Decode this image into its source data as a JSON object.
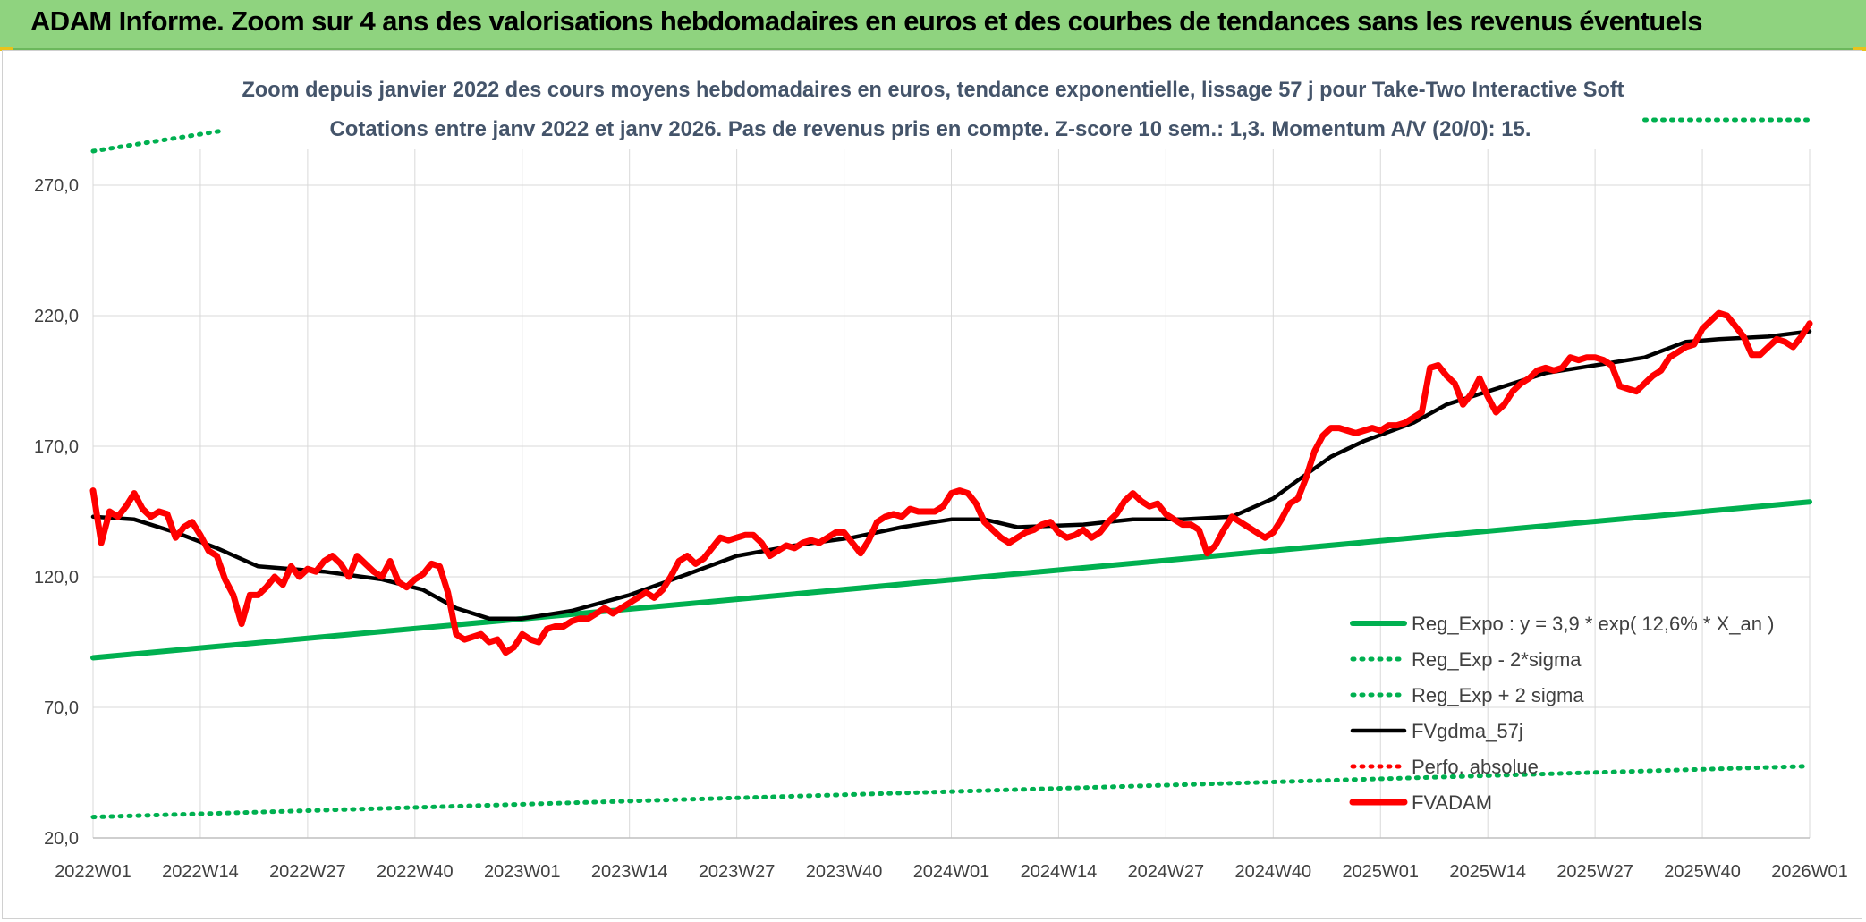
{
  "banner": {
    "title": "ADAM Informe. Zoom sur 4 ans des valorisations hebdomadaires en euros et des courbes de tendances sans les revenus éventuels"
  },
  "chart_data": {
    "type": "line",
    "title": "Zoom depuis janvier 2022 des cours moyens hebdomadaires en euros, tendance exponentielle, lissage 57 j pour Take-Two Interactive Soft",
    "subtitle": "Cotations entre janv 2022 et janv 2026. Pas de revenus pris en compte. Z-score 10 sem.: 1,3. Momentum A/V (20/0): 15.",
    "ylim": [
      20,
      290
    ],
    "y_ticks": [
      "20,0",
      "70,0",
      "120,0",
      "170,0",
      "220,0",
      "270,0"
    ],
    "y_tick_values": [
      20,
      70,
      120,
      170,
      220,
      270
    ],
    "x_ticks": [
      "2022W01",
      "2022W14",
      "2022W27",
      "2022W40",
      "2023W01",
      "2023W14",
      "2023W27",
      "2023W40",
      "2024W01",
      "2024W14",
      "2024W27",
      "2024W40",
      "2025W01",
      "2025W14",
      "2025W27",
      "2025W40",
      "2026W01"
    ],
    "x_tick_weeks": [
      0,
      13,
      26,
      39,
      52,
      65,
      78,
      91,
      104,
      117,
      130,
      143,
      156,
      169,
      182,
      195,
      208
    ],
    "x_range_weeks": [
      0,
      208
    ],
    "series": [
      {
        "name": "Reg_Expo : y = 3,9 * exp( 12,6% *  X_an )",
        "color": "#00b050",
        "style": "solid",
        "points": [
          [
            0,
            89
          ],
          [
            208,
            148.7
          ]
        ]
      },
      {
        "name": "Reg_Exp - 2*sigma",
        "color": "#00b050",
        "style": "dotted",
        "points": [
          [
            0,
            28
          ],
          [
            208,
            47.5
          ]
        ]
      },
      {
        "name": "Reg_Exp + 2 sigma",
        "color": "#00b050",
        "style": "dotted",
        "points": [
          [
            0,
            283
          ],
          [
            16,
            291
          ],
          [
            188,
            295
          ],
          [
            208,
            295
          ]
        ]
      },
      {
        "name": "FVgdma_57j",
        "color": "#000000",
        "style": "solid",
        "points": [
          [
            0,
            143
          ],
          [
            5,
            142
          ],
          [
            10,
            137
          ],
          [
            15,
            131
          ],
          [
            20,
            124
          ],
          [
            28,
            122
          ],
          [
            35,
            119
          ],
          [
            40,
            115
          ],
          [
            44,
            108
          ],
          [
            48,
            104
          ],
          [
            52,
            104
          ],
          [
            58,
            107
          ],
          [
            65,
            113
          ],
          [
            72,
            121
          ],
          [
            78,
            128
          ],
          [
            85,
            132
          ],
          [
            92,
            135
          ],
          [
            98,
            139
          ],
          [
            104,
            142
          ],
          [
            108,
            142
          ],
          [
            112,
            139
          ],
          [
            120,
            140
          ],
          [
            126,
            142
          ],
          [
            132,
            142
          ],
          [
            138,
            143
          ],
          [
            143,
            150
          ],
          [
            146,
            157
          ],
          [
            150,
            166
          ],
          [
            154,
            172
          ],
          [
            160,
            179
          ],
          [
            164,
            186
          ],
          [
            170,
            192
          ],
          [
            176,
            198
          ],
          [
            182,
            201
          ],
          [
            188,
            204
          ],
          [
            193,
            210
          ],
          [
            197,
            211
          ],
          [
            203,
            212
          ],
          [
            208,
            214
          ]
        ]
      },
      {
        "name": "Perfo. absolue",
        "color": "#ff0000",
        "style": "dotted",
        "points": []
      },
      {
        "name": "FVADAM",
        "color": "#ff0000",
        "style": "solid",
        "points": [
          [
            0,
            153
          ],
          [
            1,
            133
          ],
          [
            2,
            145
          ],
          [
            3,
            143
          ],
          [
            4,
            147
          ],
          [
            5,
            152
          ],
          [
            6,
            146
          ],
          [
            7,
            143
          ],
          [
            8,
            145
          ],
          [
            9,
            144
          ],
          [
            10,
            135
          ],
          [
            11,
            139
          ],
          [
            12,
            141
          ],
          [
            13,
            136
          ],
          [
            14,
            130
          ],
          [
            15,
            128
          ],
          [
            16,
            119
          ],
          [
            17,
            113
          ],
          [
            18,
            102
          ],
          [
            19,
            113
          ],
          [
            20,
            113
          ],
          [
            21,
            116
          ],
          [
            22,
            120
          ],
          [
            23,
            117
          ],
          [
            24,
            124
          ],
          [
            25,
            120
          ],
          [
            26,
            123
          ],
          [
            27,
            122
          ],
          [
            28,
            126
          ],
          [
            29,
            128
          ],
          [
            30,
            125
          ],
          [
            31,
            120
          ],
          [
            32,
            128
          ],
          [
            33,
            125
          ],
          [
            34,
            122
          ],
          [
            35,
            120
          ],
          [
            36,
            126
          ],
          [
            37,
            118
          ],
          [
            38,
            116
          ],
          [
            39,
            119
          ],
          [
            40,
            121
          ],
          [
            41,
            125
          ],
          [
            42,
            124
          ],
          [
            43,
            114
          ],
          [
            44,
            98
          ],
          [
            45,
            96
          ],
          [
            46,
            97
          ],
          [
            47,
            98
          ],
          [
            48,
            95
          ],
          [
            49,
            96
          ],
          [
            50,
            91
          ],
          [
            51,
            93
          ],
          [
            52,
            98
          ],
          [
            53,
            96
          ],
          [
            54,
            95
          ],
          [
            55,
            100
          ],
          [
            56,
            101
          ],
          [
            57,
            101
          ],
          [
            58,
            103
          ],
          [
            59,
            104
          ],
          [
            60,
            104
          ],
          [
            61,
            106
          ],
          [
            62,
            108
          ],
          [
            63,
            106
          ],
          [
            64,
            108
          ],
          [
            65,
            110
          ],
          [
            66,
            112
          ],
          [
            67,
            114
          ],
          [
            68,
            112
          ],
          [
            69,
            115
          ],
          [
            70,
            120
          ],
          [
            71,
            126
          ],
          [
            72,
            128
          ],
          [
            73,
            125
          ],
          [
            74,
            127
          ],
          [
            75,
            131
          ],
          [
            76,
            135
          ],
          [
            77,
            134
          ],
          [
            78,
            135
          ],
          [
            79,
            136
          ],
          [
            80,
            136
          ],
          [
            81,
            133
          ],
          [
            82,
            128
          ],
          [
            83,
            130
          ],
          [
            84,
            132
          ],
          [
            85,
            131
          ],
          [
            86,
            133
          ],
          [
            87,
            134
          ],
          [
            88,
            133
          ],
          [
            89,
            135
          ],
          [
            90,
            137
          ],
          [
            91,
            137
          ],
          [
            92,
            133
          ],
          [
            93,
            129
          ],
          [
            94,
            134
          ],
          [
            95,
            141
          ],
          [
            96,
            143
          ],
          [
            97,
            144
          ],
          [
            98,
            143
          ],
          [
            99,
            146
          ],
          [
            100,
            145
          ],
          [
            101,
            145
          ],
          [
            102,
            145
          ],
          [
            103,
            147
          ],
          [
            104,
            152
          ],
          [
            105,
            153
          ],
          [
            106,
            152
          ],
          [
            107,
            148
          ],
          [
            108,
            141
          ],
          [
            109,
            138
          ],
          [
            110,
            135
          ],
          [
            111,
            133
          ],
          [
            112,
            135
          ],
          [
            113,
            137
          ],
          [
            114,
            138
          ],
          [
            115,
            140
          ],
          [
            116,
            141
          ],
          [
            117,
            137
          ],
          [
            118,
            135
          ],
          [
            119,
            136
          ],
          [
            120,
            138
          ],
          [
            121,
            135
          ],
          [
            122,
            137
          ],
          [
            123,
            141
          ],
          [
            124,
            144
          ],
          [
            125,
            149
          ],
          [
            126,
            152
          ],
          [
            127,
            149
          ],
          [
            128,
            147
          ],
          [
            129,
            148
          ],
          [
            130,
            144
          ],
          [
            131,
            142
          ],
          [
            132,
            140
          ],
          [
            133,
            140
          ],
          [
            134,
            138
          ],
          [
            135,
            129
          ],
          [
            136,
            132
          ],
          [
            137,
            138
          ],
          [
            138,
            143
          ],
          [
            139,
            141
          ],
          [
            140,
            139
          ],
          [
            141,
            137
          ],
          [
            142,
            135
          ],
          [
            143,
            137
          ],
          [
            144,
            142
          ],
          [
            145,
            148
          ],
          [
            146,
            150
          ],
          [
            147,
            158
          ],
          [
            148,
            168
          ],
          [
            149,
            174
          ],
          [
            150,
            177
          ],
          [
            151,
            177
          ],
          [
            152,
            176
          ],
          [
            153,
            175
          ],
          [
            154,
            176
          ],
          [
            155,
            177
          ],
          [
            156,
            176
          ],
          [
            157,
            178
          ],
          [
            158,
            178
          ],
          [
            159,
            179
          ],
          [
            160,
            181
          ],
          [
            161,
            183
          ],
          [
            162,
            200
          ],
          [
            163,
            201
          ],
          [
            164,
            197
          ],
          [
            165,
            194
          ],
          [
            166,
            186
          ],
          [
            167,
            190
          ],
          [
            168,
            196
          ],
          [
            169,
            189
          ],
          [
            170,
            183
          ],
          [
            171,
            186
          ],
          [
            172,
            191
          ],
          [
            173,
            194
          ],
          [
            174,
            196
          ],
          [
            175,
            199
          ],
          [
            176,
            200
          ],
          [
            177,
            199
          ],
          [
            178,
            200
          ],
          [
            179,
            204
          ],
          [
            180,
            203
          ],
          [
            181,
            204
          ],
          [
            182,
            204
          ],
          [
            183,
            203
          ],
          [
            184,
            201
          ],
          [
            185,
            193
          ],
          [
            186,
            192
          ],
          [
            187,
            191
          ],
          [
            188,
            194
          ],
          [
            189,
            197
          ],
          [
            190,
            199
          ],
          [
            191,
            204
          ],
          [
            192,
            206
          ],
          [
            193,
            208
          ],
          [
            194,
            209
          ],
          [
            195,
            215
          ],
          [
            196,
            218
          ],
          [
            197,
            221
          ],
          [
            198,
            220
          ],
          [
            199,
            216
          ],
          [
            200,
            212
          ],
          [
            201,
            205
          ],
          [
            202,
            205
          ],
          [
            203,
            208
          ],
          [
            204,
            211
          ],
          [
            205,
            210
          ],
          [
            206,
            208
          ],
          [
            207,
            212
          ],
          [
            208,
            217
          ]
        ]
      }
    ]
  }
}
